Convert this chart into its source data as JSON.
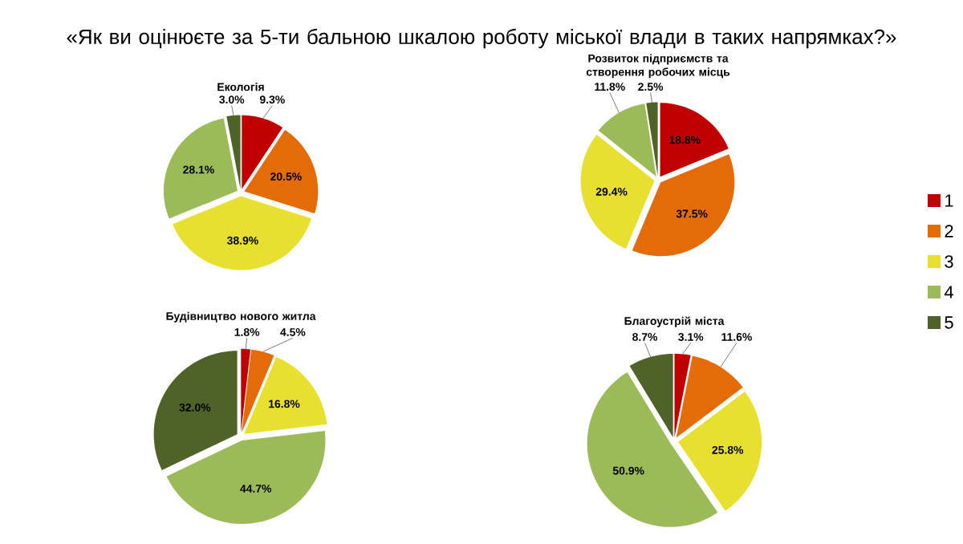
{
  "chart_data": [
    {
      "type": "other",
      "title": "«Як ви оцінюєте за 5-ти бальною шкалою роботу міської влади в таких напрямках?»"
    },
    {
      "type": "pie",
      "title": "Екологія",
      "categories": [
        null,
        null,
        null,
        null,
        null
      ],
      "values": [
        9.3,
        20.5,
        38.9,
        28.1,
        3.0
      ],
      "value_labels": [
        "9.3%",
        "20.5%",
        "38.9%",
        "28.1%",
        "3.0%"
      ],
      "colors": [
        "#c00000",
        "#e36c09",
        "#e8e030",
        "#9bbb59",
        "#4f6228"
      ]
    },
    {
      "type": "pie",
      "title": "Розвиток підприємств та створення робочих місць",
      "categories": [
        "1",
        "2",
        "3",
        "4",
        "5"
      ],
      "values": [
        18.8,
        37.5,
        29.4,
        11.8,
        2.5
      ],
      "value_labels": [
        "18.8%",
        "37.5%",
        "29.4%",
        "11.8%",
        "2.5%"
      ],
      "colors": [
        "#c00000",
        "#e36c09",
        "#e8e030",
        "#9bbb59",
        "#4f6228"
      ],
      "legend": "right"
    },
    {
      "type": "pie",
      "title": "Будівництво нового житла",
      "categories": [
        null,
        null,
        null,
        null,
        null
      ],
      "values": [
        1.8,
        4.5,
        16.8,
        44.7,
        32.0
      ],
      "value_labels": [
        "1.8%",
        "4.5%",
        "16.8%",
        "44.7%",
        "32.0%"
      ],
      "colors": [
        "#c00000",
        "#e36c09",
        "#e8e030",
        "#9bbb59",
        "#4f6228"
      ]
    },
    {
      "type": "pie",
      "title": "Благоустрій міста",
      "categories": [
        null,
        null,
        null,
        null,
        null
      ],
      "values": [
        3.1,
        11.6,
        25.8,
        50.9,
        8.7
      ],
      "value_labels": [
        "3.1%",
        "11.6%",
        "25.8%",
        "50.9%",
        "8.7%"
      ],
      "colors": [
        "#c00000",
        "#e36c09",
        "#e8e030",
        "#9bbb59",
        "#4f6228"
      ]
    }
  ]
}
